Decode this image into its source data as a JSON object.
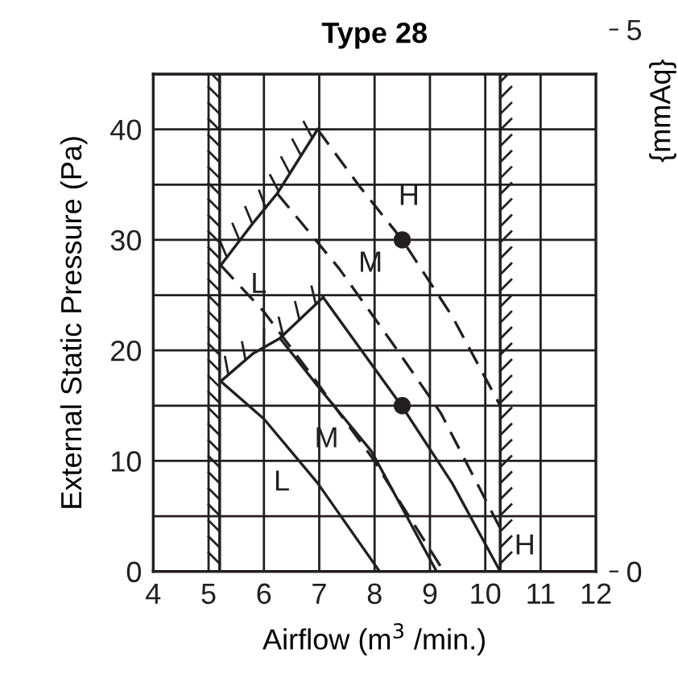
{
  "chart_data": {
    "type": "line",
    "title": "Type 28",
    "xlabel": "Airflow (m$^{3}$ /min.)",
    "ylabel": "External Static Pressure (Pa)",
    "y2label": "{mmAq}",
    "xlim": [
      4,
      12
    ],
    "xticks": [
      4,
      5,
      6,
      7,
      8,
      9,
      10,
      11,
      12
    ],
    "ylim": [
      0,
      45
    ],
    "yticks": [
      0,
      10,
      20,
      30,
      40
    ],
    "y2lim": [
      0,
      5
    ],
    "y2ticks": [
      0,
      5
    ],
    "line_style": "solid",
    "marker": "none",
    "series": [
      {
        "color": "#231f20",
        "x": [
          5.22,
          5.8,
          6.24,
          6.97
        ],
        "values": [
          27.7,
          31.5,
          34.2,
          40
        ]
      },
      {
        "color": "#231f20",
        "line_style": "dashed",
        "x": [
          5.22,
          6.0,
          6.9,
          7.94,
          9.25
        ],
        "values": [
          27.7,
          23.5,
          17.5,
          10.4,
          0
        ]
      },
      {
        "color": "#231f20",
        "line_style": "dashed",
        "x": [
          6.24,
          7.36,
          8.33,
          9.2,
          10.27
        ],
        "values": [
          34.2,
          27.4,
          20.6,
          14.3,
          3.9
        ]
      },
      {
        "color": "#231f20",
        "line_style": "dashed",
        "x": [
          6.97,
          7.75,
          8.5,
          9.4,
          10.27
        ],
        "values": [
          40,
          34.7,
          30,
          23.1,
          15
        ]
      },
      {
        "color": "#231f20",
        "x": [
          5.22,
          5.8,
          6.29,
          7.07
        ],
        "values": [
          17.2,
          19.7,
          21.1,
          24.8
        ]
      },
      {
        "color": "#231f20",
        "x": [
          5.22,
          6.0,
          6.97,
          8.09
        ],
        "values": [
          17.2,
          13.8,
          8.0,
          0
        ]
      },
      {
        "color": "#231f20",
        "x": [
          6.29,
          7.0,
          7.94,
          9.12
        ],
        "values": [
          21.1,
          16.6,
          10.9,
          0
        ]
      },
      {
        "color": "#231f20",
        "x": [
          7.07,
          8.5,
          9.4,
          10.27
        ],
        "values": [
          24.8,
          14.9,
          8.0,
          0
        ]
      },
      {
        "type": "scatter",
        "color": "#231f20",
        "marker": "circle",
        "x": [
          8.5,
          8.5
        ],
        "values": [
          30,
          15
        ]
      }
    ],
    "ref_lines": [
      {
        "axis": "x",
        "value": 5.2,
        "color": "#231f20"
      },
      {
        "axis": "x",
        "value": 10.27,
        "color": "#231f20"
      }
    ],
    "grid": true,
    "annotations": [
      {
        "text": "L",
        "x": 5.22,
        "y": 27.7
      },
      "M",
      "H",
      "L",
      "M",
      "H"
    ]
  }
}
